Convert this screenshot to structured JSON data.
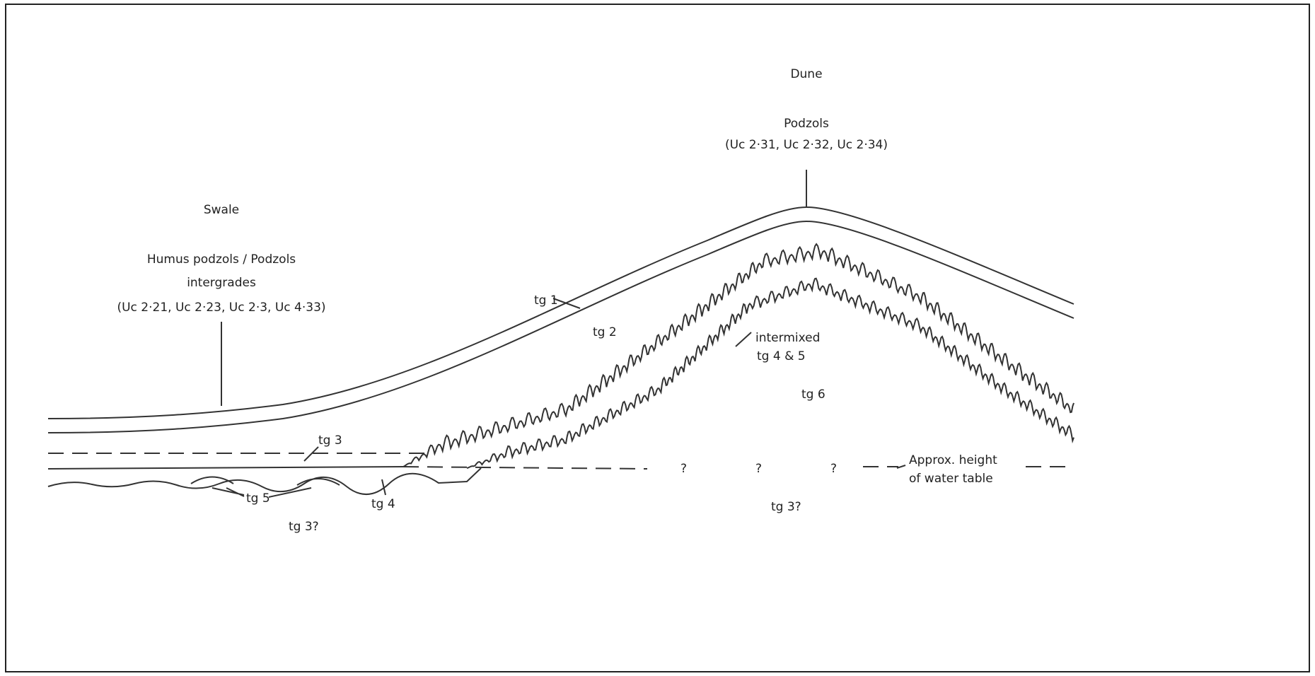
{
  "labels": {
    "dune": "Dune",
    "dune_soil": "Podzols",
    "dune_codes": "(Uc 2·31, Uc 2·32, Uc 2·34)",
    "swale": "Swale",
    "swale_soil_1": "Humus podzols / Podzols",
    "swale_soil_2": "intergrades",
    "swale_codes": "(Uc 2·21, Uc 2·23, Uc 2·3, Uc 4·33)",
    "tg1": "tg 1",
    "tg2": "tg 2",
    "intermixed_1": "intermixed",
    "intermixed_2": "tg 4 & 5",
    "tg6": "tg 6",
    "tg3": "tg 3",
    "q1": "?",
    "q2": "?",
    "q3": "?",
    "water_1": "Approx. height",
    "water_2": "of water table",
    "tg5": "tg 5",
    "tg4": "tg 4",
    "tg3q_left": "tg 3?",
    "tg3q_right": "tg 3?"
  }
}
